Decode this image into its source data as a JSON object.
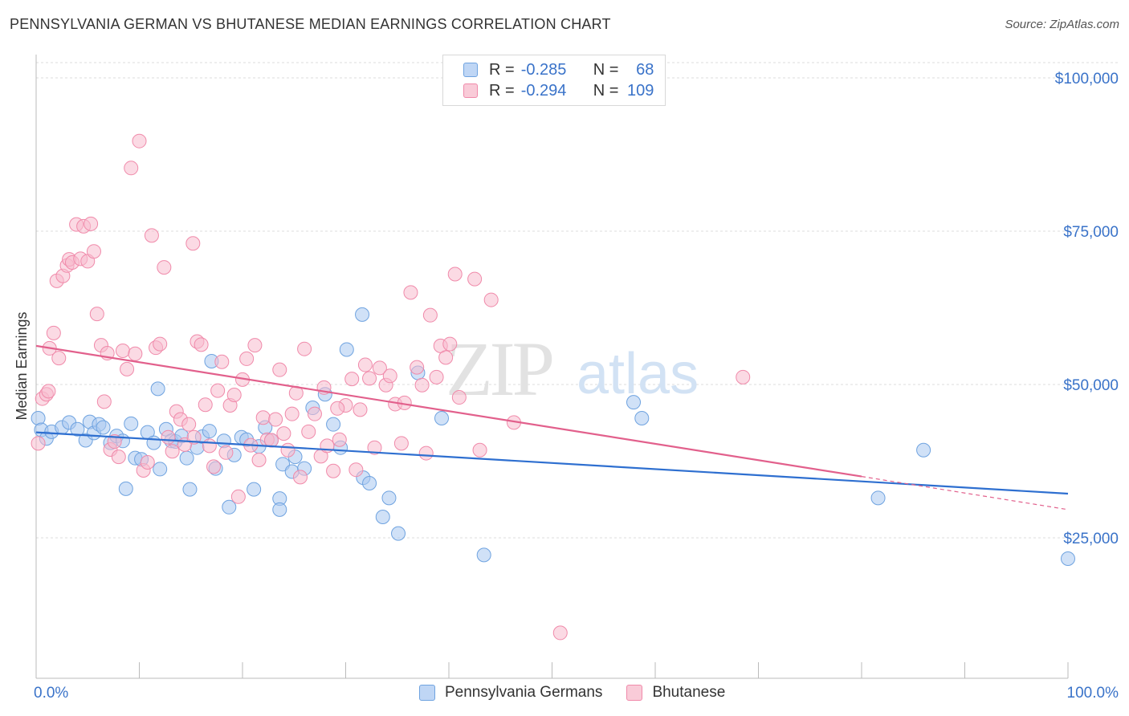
{
  "chart_data": {
    "type": "scatter",
    "title": "PENNSYLVANIA GERMAN VS BHUTANESE MEDIAN EARNINGS CORRELATION CHART",
    "source": "Source: ZipAtlas.com",
    "watermark": {
      "zip": "ZIP",
      "atlas": "atlas"
    },
    "xlabel": "",
    "ylabel": "Median Earnings",
    "xlim": [
      0,
      100
    ],
    "ylim": [
      0,
      105000
    ],
    "x_tick_labels": {
      "left": "0.0%",
      "right": "100.0%"
    },
    "y_ticks": [
      {
        "value": 25000,
        "label": "$25,000"
      },
      {
        "value": 50000,
        "label": "$50,000"
      },
      {
        "value": 75000,
        "label": "$75,000"
      },
      {
        "value": 100000,
        "label": "$100,000"
      }
    ],
    "legend": {
      "r_label": "R =",
      "n_label": "N =",
      "rows": [
        {
          "r": "-0.285",
          "n": "68"
        },
        {
          "r": "-0.294",
          "n": "109"
        }
      ]
    },
    "series": [
      {
        "name": "Pennsylvania Germans",
        "color": "#6fa3e0",
        "fill": "#a9c8f0",
        "trend_color": "#2e6fd0",
        "trend": {
          "x0": 0,
          "y0": 42200,
          "x1": 100,
          "y1": 32200,
          "dash_to": null
        },
        "points": [
          [
            0.2,
            44500
          ],
          [
            0.5,
            42600
          ],
          [
            1.0,
            41200
          ],
          [
            1.5,
            42300
          ],
          [
            2.5,
            43000
          ],
          [
            3.2,
            43800
          ],
          [
            4.0,
            42700
          ],
          [
            4.8,
            40900
          ],
          [
            5.2,
            43900
          ],
          [
            5.6,
            42100
          ],
          [
            6.1,
            43500
          ],
          [
            6.5,
            43000
          ],
          [
            7.2,
            40500
          ],
          [
            7.8,
            41600
          ],
          [
            8.4,
            40800
          ],
          [
            8.7,
            33000
          ],
          [
            9.2,
            43600
          ],
          [
            9.6,
            38000
          ],
          [
            10.2,
            37800
          ],
          [
            10.8,
            42200
          ],
          [
            11.4,
            40500
          ],
          [
            11.8,
            49300
          ],
          [
            12.0,
            36200
          ],
          [
            12.6,
            42700
          ],
          [
            13.1,
            40800
          ],
          [
            13.5,
            40700
          ],
          [
            14.1,
            41600
          ],
          [
            14.6,
            38000
          ],
          [
            14.9,
            32900
          ],
          [
            15.6,
            39700
          ],
          [
            16.1,
            41500
          ],
          [
            16.8,
            42400
          ],
          [
            17.0,
            53800
          ],
          [
            17.4,
            36300
          ],
          [
            18.2,
            40800
          ],
          [
            18.7,
            30000
          ],
          [
            19.2,
            38500
          ],
          [
            19.9,
            41400
          ],
          [
            20.4,
            41000
          ],
          [
            21.1,
            32900
          ],
          [
            21.6,
            39900
          ],
          [
            22.2,
            43000
          ],
          [
            22.8,
            40900
          ],
          [
            23.6,
            31400
          ],
          [
            23.9,
            37000
          ],
          [
            24.8,
            35800
          ],
          [
            25.1,
            38200
          ],
          [
            26.0,
            36300
          ],
          [
            26.8,
            46200
          ],
          [
            28.0,
            48400
          ],
          [
            28.8,
            43500
          ],
          [
            29.5,
            39700
          ],
          [
            30.1,
            55700
          ],
          [
            31.6,
            61400
          ],
          [
            31.7,
            34800
          ],
          [
            32.3,
            33900
          ],
          [
            33.6,
            28400
          ],
          [
            34.2,
            31500
          ],
          [
            35.1,
            25700
          ],
          [
            37.0,
            51900
          ],
          [
            39.3,
            44500
          ],
          [
            43.4,
            22200
          ],
          [
            57.9,
            47100
          ],
          [
            58.7,
            44500
          ],
          [
            81.6,
            31500
          ],
          [
            86.0,
            39300
          ],
          [
            100.0,
            21600
          ],
          [
            23.6,
            29600
          ]
        ]
      },
      {
        "name": "Bhutanese",
        "color": "#f08aaa",
        "fill": "#f7bccd",
        "trend_color": "#e2608c",
        "trend": {
          "x0": 0,
          "y0": 56300,
          "x1": 80,
          "y1": 35000,
          "dash_to": {
            "x": 100,
            "y": 29600
          }
        },
        "points": [
          [
            0.2,
            40400
          ],
          [
            0.6,
            47700
          ],
          [
            1.0,
            48400
          ],
          [
            1.2,
            48900
          ],
          [
            1.3,
            55900
          ],
          [
            1.7,
            58400
          ],
          [
            2.0,
            66900
          ],
          [
            2.2,
            54300
          ],
          [
            2.6,
            67700
          ],
          [
            3.0,
            69400
          ],
          [
            3.2,
            70400
          ],
          [
            3.5,
            69900
          ],
          [
            3.9,
            76100
          ],
          [
            4.3,
            70500
          ],
          [
            4.6,
            75800
          ],
          [
            5.0,
            70100
          ],
          [
            5.3,
            76200
          ],
          [
            5.6,
            71700
          ],
          [
            5.9,
            61500
          ],
          [
            6.3,
            56400
          ],
          [
            6.6,
            47200
          ],
          [
            6.9,
            55100
          ],
          [
            7.2,
            39400
          ],
          [
            7.6,
            40700
          ],
          [
            8.0,
            38200
          ],
          [
            8.4,
            55500
          ],
          [
            8.8,
            52500
          ],
          [
            9.2,
            85300
          ],
          [
            9.6,
            55000
          ],
          [
            10.0,
            89700
          ],
          [
            10.4,
            36000
          ],
          [
            10.8,
            37300
          ],
          [
            11.2,
            74300
          ],
          [
            11.6,
            56000
          ],
          [
            12.0,
            56600
          ],
          [
            12.4,
            69100
          ],
          [
            12.8,
            41400
          ],
          [
            13.2,
            39100
          ],
          [
            13.6,
            45600
          ],
          [
            14.0,
            44300
          ],
          [
            14.4,
            40200
          ],
          [
            14.8,
            43500
          ],
          [
            15.2,
            73000
          ],
          [
            15.6,
            57000
          ],
          [
            16.0,
            56500
          ],
          [
            16.4,
            46700
          ],
          [
            16.8,
            40000
          ],
          [
            17.2,
            36600
          ],
          [
            17.6,
            49000
          ],
          [
            18.0,
            53700
          ],
          [
            18.4,
            38900
          ],
          [
            18.8,
            46600
          ],
          [
            19.2,
            48300
          ],
          [
            19.6,
            31700
          ],
          [
            20.0,
            50800
          ],
          [
            20.4,
            54200
          ],
          [
            20.8,
            40100
          ],
          [
            21.2,
            56400
          ],
          [
            21.6,
            37700
          ],
          [
            22.0,
            44600
          ],
          [
            22.4,
            41000
          ],
          [
            22.8,
            40900
          ],
          [
            23.2,
            44300
          ],
          [
            23.6,
            52400
          ],
          [
            24.0,
            42000
          ],
          [
            24.4,
            39300
          ],
          [
            24.8,
            45200
          ],
          [
            25.2,
            48600
          ],
          [
            25.6,
            34900
          ],
          [
            26.0,
            55800
          ],
          [
            26.4,
            42300
          ],
          [
            27.0,
            45200
          ],
          [
            27.6,
            38300
          ],
          [
            28.2,
            40000
          ],
          [
            28.8,
            35900
          ],
          [
            29.4,
            41000
          ],
          [
            30.0,
            46600
          ],
          [
            30.6,
            50900
          ],
          [
            31.0,
            36100
          ],
          [
            31.4,
            45900
          ],
          [
            31.9,
            53200
          ],
          [
            32.3,
            51000
          ],
          [
            32.8,
            39700
          ],
          [
            33.3,
            52700
          ],
          [
            33.9,
            49900
          ],
          [
            34.3,
            51400
          ],
          [
            34.8,
            46800
          ],
          [
            35.4,
            40400
          ],
          [
            35.7,
            47000
          ],
          [
            36.3,
            65000
          ],
          [
            36.9,
            52800
          ],
          [
            37.4,
            49900
          ],
          [
            37.8,
            38800
          ],
          [
            38.2,
            61300
          ],
          [
            38.8,
            51200
          ],
          [
            39.2,
            56300
          ],
          [
            39.7,
            54400
          ],
          [
            40.1,
            56600
          ],
          [
            40.6,
            68000
          ],
          [
            41.0,
            47900
          ],
          [
            42.5,
            67200
          ],
          [
            43.0,
            39300
          ],
          [
            44.1,
            63800
          ],
          [
            46.3,
            43800
          ],
          [
            50.8,
            9500
          ],
          [
            68.5,
            51200
          ],
          [
            29.2,
            46100
          ],
          [
            27.9,
            49500
          ],
          [
            15.3,
            41400
          ]
        ]
      }
    ]
  }
}
